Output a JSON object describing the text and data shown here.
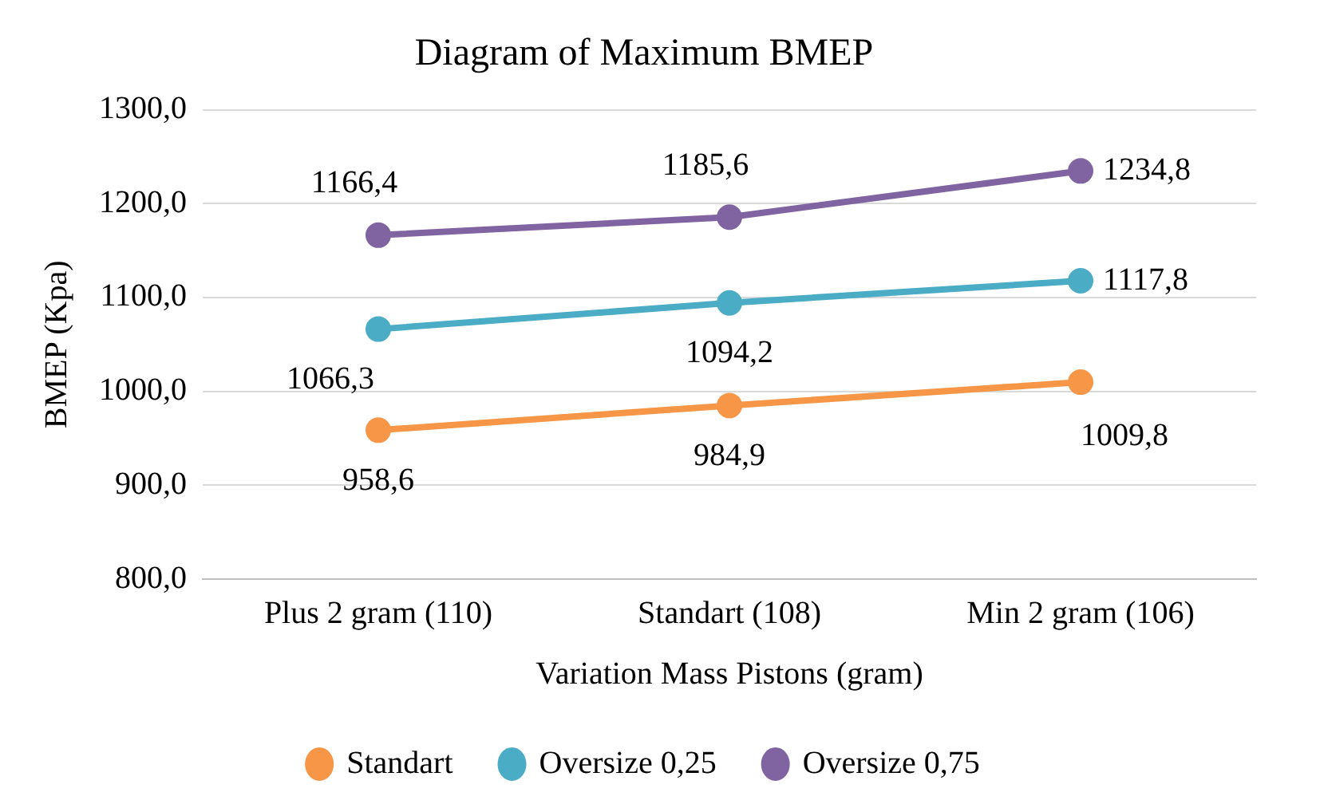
{
  "chart_data": {
    "type": "line",
    "title": "Diagram of Maximum BMEP",
    "xlabel": "Variation Mass Pistons (gram)",
    "ylabel": "BMEP (Kpa)",
    "categories": [
      "Plus 2 gram (110)",
      "Standart (108)",
      "Min 2 gram (106)"
    ],
    "series": [
      {
        "name": "Standart",
        "color": "#f79646",
        "values": [
          958.6,
          984.9,
          1009.8
        ],
        "value_labels": [
          "958,6",
          "984,9",
          "1009,8"
        ]
      },
      {
        "name": "Oversize 0,25",
        "color": "#4bacc6",
        "values": [
          1066.3,
          1094.2,
          1117.8
        ],
        "value_labels": [
          "1066,3",
          "1094,2",
          "1117,8"
        ]
      },
      {
        "name": "Oversize 0,75",
        "color": "#8064a2",
        "values": [
          1166.4,
          1185.6,
          1234.8
        ],
        "value_labels": [
          "1166,4",
          "1185,6",
          "1234,8"
        ]
      }
    ],
    "ylim": [
      800,
      1300
    ],
    "yticks": [
      {
        "value": 800,
        "label": "800,0"
      },
      {
        "value": 900,
        "label": "900,0"
      },
      {
        "value": 1000,
        "label": "1000,0"
      },
      {
        "value": 1100,
        "label": "1100,0"
      },
      {
        "value": 1200,
        "label": "1200,0"
      },
      {
        "value": 1300,
        "label": "1300,0"
      }
    ],
    "grid": "y",
    "legend": "bottom",
    "marker": "circle",
    "line_style": "solid"
  }
}
